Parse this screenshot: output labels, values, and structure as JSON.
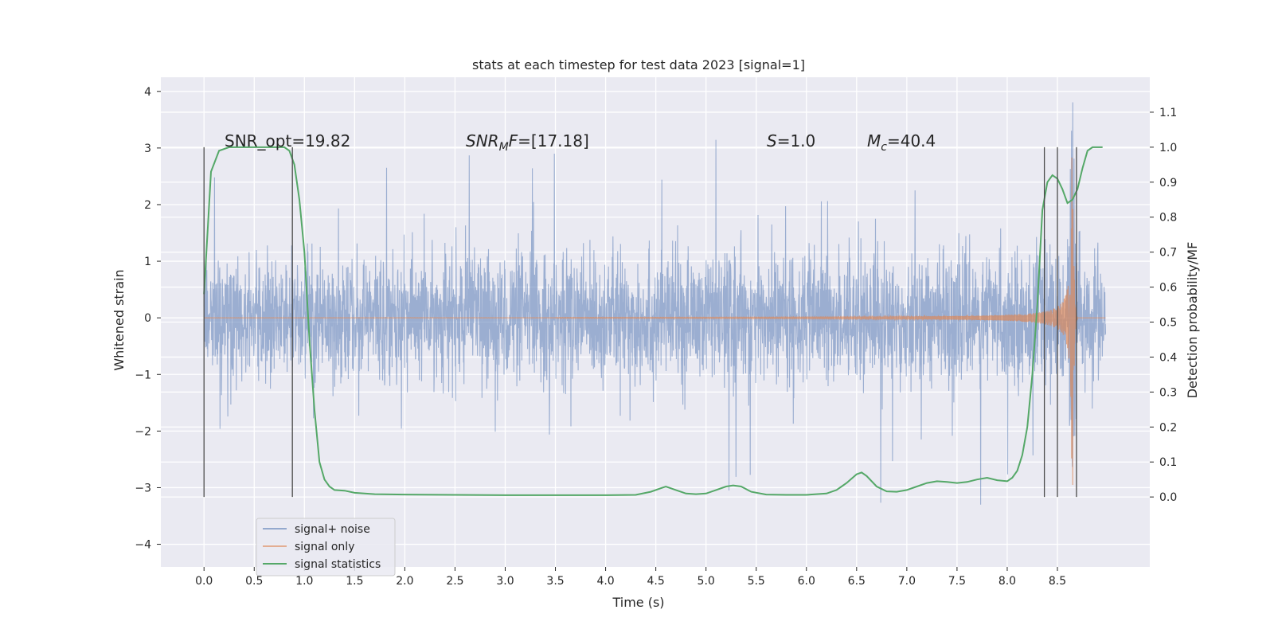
{
  "chart_data": {
    "type": "line",
    "title": "stats at each timestep for test data 2023 [signal=1]",
    "xlabel": "Time (s)",
    "ylabel_left": "Whitened strain",
    "ylabel_right": "Detection probability/MF",
    "xlim": [
      -0.43,
      9.42
    ],
    "ylim_left": [
      -4.4,
      4.25
    ],
    "ylim_right": [
      -0.2,
      1.2
    ],
    "x_ticks": [
      "0.0",
      "0.5",
      "1.0",
      "1.5",
      "2.0",
      "2.5",
      "3.0",
      "3.5",
      "4.0",
      "4.5",
      "5.0",
      "5.5",
      "6.0",
      "6.5",
      "7.0",
      "7.5",
      "8.0",
      "8.5"
    ],
    "y_ticks_left": [
      "−4",
      "−3",
      "−2",
      "−1",
      "0",
      "1",
      "2",
      "3",
      "4"
    ],
    "y_ticks_right": [
      "0.0",
      "0.1",
      "0.2",
      "0.3",
      "0.4",
      "0.5",
      "0.6",
      "0.7",
      "0.8",
      "0.9",
      "1.0",
      "1.1"
    ],
    "grid": true,
    "legend_position": "lower-left",
    "annotations": {
      "snr_opt": "SNR_opt=19.82",
      "snr_mf_main": "SNR",
      "snr_mf_sub": "M",
      "snr_mf_tail": "F=[17.18]",
      "s_var": "S",
      "s_val": "=1.0",
      "mc_var": "M",
      "mc_sub": "c",
      "mc_val": "=40.4"
    },
    "vertical_markers_x": [
      0.0,
      0.88,
      8.37,
      8.5,
      8.69
    ],
    "series": [
      {
        "name": "signal+ noise",
        "color": "#4c72b0",
        "axis": "left",
        "description_values": {
          "x_range": [
            0.0,
            8.98
          ],
          "typical_envelope": [
            -1.5,
            1.6
          ],
          "extremes": [
            -4.0,
            3.9
          ]
        }
      },
      {
        "name": "signal only",
        "color": "#dd8452",
        "axis": "left",
        "description_values": {
          "x_range": [
            0.0,
            8.98
          ],
          "chirp_peak_time": 8.65,
          "peak_amplitude": 3.8
        }
      },
      {
        "name": "signal statistics",
        "color": "#55a868",
        "axis": "right",
        "x": [
          0.0,
          0.07,
          0.15,
          0.25,
          0.4,
          0.6,
          0.8,
          0.85,
          0.9,
          0.95,
          1.0,
          1.05,
          1.1,
          1.15,
          1.2,
          1.25,
          1.3,
          1.4,
          1.5,
          1.7,
          2.0,
          2.5,
          3.0,
          3.5,
          4.0,
          4.3,
          4.45,
          4.55,
          4.6,
          4.7,
          4.8,
          4.9,
          5.0,
          5.1,
          5.2,
          5.27,
          5.35,
          5.45,
          5.6,
          5.8,
          6.0,
          6.2,
          6.3,
          6.35,
          6.4,
          6.5,
          6.55,
          6.6,
          6.7,
          6.8,
          6.9,
          7.0,
          7.1,
          7.2,
          7.3,
          7.4,
          7.5,
          7.6,
          7.7,
          7.8,
          7.9,
          8.0,
          8.05,
          8.1,
          8.15,
          8.2,
          8.25,
          8.3,
          8.35,
          8.4,
          8.45,
          8.5,
          8.55,
          8.6,
          8.65,
          8.7,
          8.75,
          8.8,
          8.85,
          8.9,
          8.95
        ],
        "values": [
          0.58,
          0.93,
          0.99,
          1.0,
          1.0,
          1.0,
          1.0,
          0.99,
          0.95,
          0.85,
          0.7,
          0.45,
          0.25,
          0.1,
          0.05,
          0.03,
          0.02,
          0.018,
          0.012,
          0.008,
          0.007,
          0.006,
          0.005,
          0.005,
          0.005,
          0.006,
          0.015,
          0.025,
          0.03,
          0.02,
          0.01,
          0.008,
          0.01,
          0.02,
          0.03,
          0.033,
          0.03,
          0.015,
          0.007,
          0.006,
          0.006,
          0.01,
          0.02,
          0.03,
          0.04,
          0.065,
          0.07,
          0.06,
          0.03,
          0.016,
          0.015,
          0.02,
          0.03,
          0.04,
          0.045,
          0.043,
          0.04,
          0.043,
          0.05,
          0.055,
          0.048,
          0.045,
          0.055,
          0.075,
          0.12,
          0.2,
          0.35,
          0.55,
          0.82,
          0.9,
          0.92,
          0.91,
          0.88,
          0.84,
          0.85,
          0.88,
          0.94,
          0.99,
          1.0,
          1.0,
          1.0
        ]
      }
    ]
  }
}
